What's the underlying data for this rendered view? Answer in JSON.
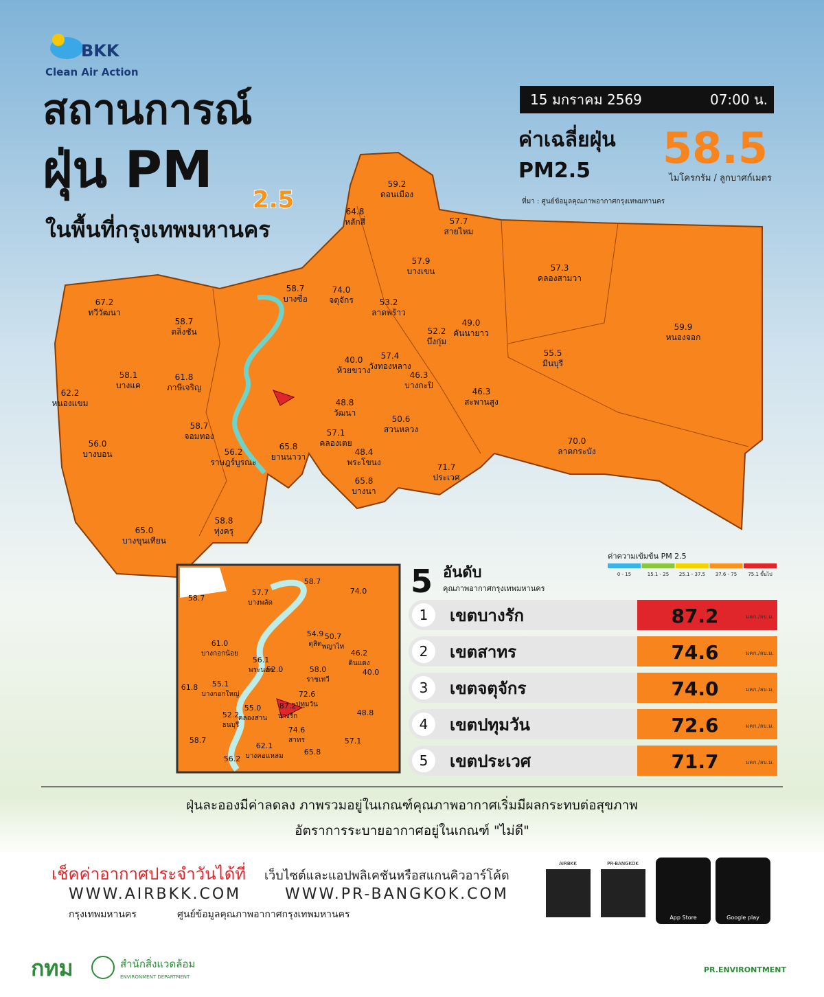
{
  "header": {
    "brand": "BKK",
    "brand_sub": "Clean Air Action",
    "title_1": "สถานการณ์",
    "title_2": "ฝุ่น PM",
    "title_sub": "2.5",
    "title_3": "ในพื้นที่กรุงเทพมหานคร"
  },
  "info": {
    "date": "15 มกราคม 2569",
    "time": "07:00 น.",
    "avg_label": "ค่าเฉลี่ยฝุ่น",
    "avg_pm": "PM2.5",
    "avg_value": "58.5",
    "unit": "ไมโครกรัม / ลูกบาศก์เมตร",
    "source": "ที่มา : ศูนย์ข้อมูลคุณภาพอากาศกรุงเทพมหานคร"
  },
  "map": {
    "districts": [
      {
        "value": "59.2",
        "name": "ดอนเมือง"
      },
      {
        "value": "64.8",
        "name": "หลักสี่"
      },
      {
        "value": "57.7",
        "name": "สายไหม"
      },
      {
        "value": "57.9",
        "name": "บางเขน"
      },
      {
        "value": "57.3",
        "name": "คลองสามวา"
      },
      {
        "value": "74.0",
        "name": "จตุจักร"
      },
      {
        "value": "58.7",
        "name": "บางซื่อ"
      },
      {
        "value": "53.2",
        "name": "ลาดพร้าว"
      },
      {
        "value": "52.2",
        "name": "บึงกุ่ม"
      },
      {
        "value": "49.0",
        "name": "คันนายาว"
      },
      {
        "value": "59.9",
        "name": "หนองจอก"
      },
      {
        "value": "67.2",
        "name": "ทวีวัฒนา"
      },
      {
        "value": "58.7",
        "name": "ตลิ่งชัน"
      },
      {
        "value": "62.2",
        "name": "หนองแขม"
      },
      {
        "value": "58.1",
        "name": "บางแค"
      },
      {
        "value": "61.8",
        "name": "ภาษีเจริญ"
      },
      {
        "value": "57.4",
        "name": "วังทองหลาง"
      },
      {
        "value": "46.3",
        "name": "บางกะปิ"
      },
      {
        "value": "55.5",
        "name": "มีนบุรี"
      },
      {
        "value": "46.3",
        "name": "สะพานสูง"
      },
      {
        "value": "48.8",
        "name": "วัฒนา"
      },
      {
        "value": "50.6",
        "name": "สวนหลวง"
      },
      {
        "value": "57.1",
        "name": "คลองเตย"
      },
      {
        "value": "58.7",
        "name": "จอมทอง"
      },
      {
        "value": "56.0",
        "name": "บางบอน"
      },
      {
        "value": "65.8",
        "name": "ยานนาวา"
      },
      {
        "value": "56.2",
        "name": "ราษฎร์บูรณะ"
      },
      {
        "value": "70.0",
        "name": "ลาดกระบัง"
      },
      {
        "value": "48.4",
        "name": "พระโขนง"
      },
      {
        "value": "71.7",
        "name": "ประเวศ"
      },
      {
        "value": "65.8",
        "name": "บางนา"
      },
      {
        "value": "58.8",
        "name": "ทุ่งครุ"
      },
      {
        "value": "65.0",
        "name": "บางขุนเทียน"
      },
      {
        "value": "40.0",
        "name": "ห้วยขวาง"
      }
    ],
    "inset": [
      {
        "value": "58.7"
      },
      {
        "value": "74.0"
      },
      {
        "value": "58.7"
      },
      {
        "value": "57.7",
        "name": "บางพลัด"
      },
      {
        "value": "61.0",
        "name": "บางกอกน้อย"
      },
      {
        "value": "54.9",
        "name": "ดุสิต"
      },
      {
        "value": "50.7",
        "name": "พญาไท"
      },
      {
        "value": "46.2",
        "name": "ดินแดง"
      },
      {
        "value": "56.1",
        "name": "พระนคร"
      },
      {
        "value": "52.0"
      },
      {
        "value": "58.0",
        "name": "ราชเทวี"
      },
      {
        "value": "40.0"
      },
      {
        "value": "61.8"
      },
      {
        "value": "55.1",
        "name": "บางกอกใหญ่"
      },
      {
        "value": "72.6",
        "name": "ปทุมวัน"
      },
      {
        "value": "52.2",
        "name": "ธนบุรี"
      },
      {
        "value": "55.0",
        "name": "คลองสาน"
      },
      {
        "value": "87.2",
        "name": "บางรัก"
      },
      {
        "value": "48.8"
      },
      {
        "value": "74.6",
        "name": "สาทร"
      },
      {
        "value": "58.7"
      },
      {
        "value": "57.1"
      },
      {
        "value": "62.1",
        "name": "บางคอแหลม"
      },
      {
        "value": "65.8"
      },
      {
        "value": "56.2"
      }
    ]
  },
  "ranking": {
    "big_number": "5",
    "title": "อันดับ",
    "subtitle": "คุณภาพอากาศกรุงเทพมหานคร",
    "scale_title": "ค่าความเข้มข้น PM 2.5",
    "scale": [
      {
        "label": "0 - 15",
        "color": "#3bb3e6"
      },
      {
        "label": "15.1 - 25",
        "color": "#8cc63f"
      },
      {
        "label": "25.1 - 37.5",
        "color": "#f2d500"
      },
      {
        "label": "37.6 - 75",
        "color": "#f7941d"
      },
      {
        "label": "75.1 ขึ้นไป",
        "color": "#e0262b"
      }
    ],
    "unit": "มคก./ลบ.ม.",
    "rows": [
      {
        "rank": "1",
        "district": "เขตบางรัก",
        "value": "87.2",
        "color": "#e0262b"
      },
      {
        "rank": "2",
        "district": "เขตสาทร",
        "value": "74.6",
        "color": "#f7841d"
      },
      {
        "rank": "3",
        "district": "เขตจตุจักร",
        "value": "74.0",
        "color": "#f7841d"
      },
      {
        "rank": "4",
        "district": "เขตปทุมวัน",
        "value": "72.6",
        "color": "#f7841d"
      },
      {
        "rank": "5",
        "district": "เขตประเวศ",
        "value": "71.7",
        "color": "#f7841d"
      }
    ]
  },
  "summary": {
    "line_1": "ฝุ่นละอองมีค่าลดลง ภาพรวมอยู่ในเกณฑ์คุณภาพอากาศเริ่มมีผลกระทบต่อสุขภาพ",
    "line_2": "อัตราการระบายอากาศอยู่ในเกณฑ์ \"ไม่ดี\""
  },
  "footer": {
    "check": "เช็คค่าอากาศประจำวันได้ที่",
    "check_sub": "เว็บไซต์และแอปพลิเคชันหรือสแกนคิวอาร์โค้ด",
    "url_1": "WWW.AIRBKK.COM",
    "url_2": "WWW.PR-BANGKOK.COM",
    "fb_1": "กรุงเทพมหานคร",
    "fb_2": "ศูนย์ข้อมูลคุณภาพอากาศกรุงเทพมหานคร",
    "qr_1": "AIRBKK",
    "qr_2": "PR-BANGKOK",
    "store_1": "App Store",
    "store_2": "Google play",
    "logo": "กทม",
    "dept": "สำนักสิ่งแวดล้อม",
    "dept_en": "ENVIRONMENT DEPARTMENT",
    "social": "PR.ENVIRONTMENT"
  }
}
